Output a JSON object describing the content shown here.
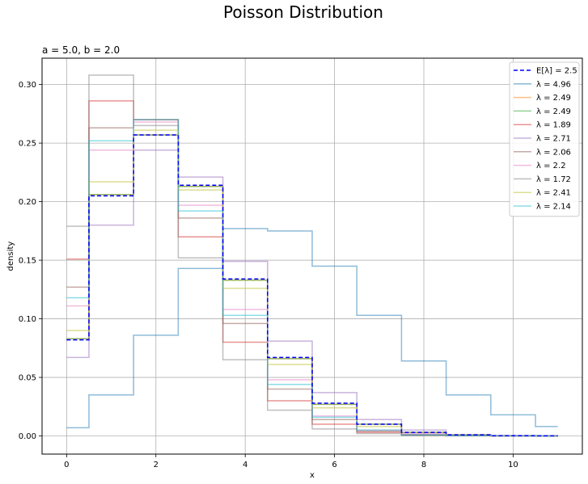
{
  "chart_data": {
    "type": "line",
    "title": "Poisson Distribution",
    "subtitle": "a = 5.0, b = 2.0",
    "xlabel": "x",
    "ylabel": "density",
    "xlim": [
      -0.55,
      11.55
    ],
    "ylim": [
      -0.0155,
      0.3225
    ],
    "xticks": [
      0,
      2,
      4,
      6,
      8,
      10
    ],
    "yticks": [
      0.0,
      0.05,
      0.1,
      0.15,
      0.2,
      0.25,
      0.3
    ],
    "ytick_labels": [
      "0.00",
      "0.05",
      "0.10",
      "0.15",
      "0.20",
      "0.25",
      "0.30"
    ],
    "grid": true,
    "legend_position": "top-right",
    "drawstyle": "steps-mid",
    "x": [
      0,
      1,
      2,
      3,
      4,
      5,
      6,
      7,
      8,
      9,
      10,
      11
    ],
    "series": [
      {
        "name": "E[λ] = 2.5",
        "color": "#0000ff",
        "dashed": true,
        "values": [
          0.082,
          0.205,
          0.257,
          0.214,
          0.134,
          0.067,
          0.028,
          0.01,
          0.003,
          0.001,
          0.0002,
          0.0001
        ]
      },
      {
        "name": "λ = 4.96",
        "color": "#1f77b4",
        "values": [
          0.007,
          0.035,
          0.086,
          0.143,
          0.177,
          0.175,
          0.145,
          0.103,
          0.064,
          0.035,
          0.018,
          0.008
        ]
      },
      {
        "name": "λ = 2.49",
        "color": "#ff7f0e",
        "values": [
          0.083,
          0.206,
          0.257,
          0.213,
          0.133,
          0.066,
          0.027,
          0.01,
          0.003,
          0.001,
          0.0002,
          0.0001
        ]
      },
      {
        "name": "λ = 2.49",
        "color": "#2ca02c",
        "values": [
          0.083,
          0.206,
          0.257,
          0.213,
          0.133,
          0.066,
          0.027,
          0.01,
          0.003,
          0.001,
          0.0002,
          0.0001
        ]
      },
      {
        "name": "λ = 1.89",
        "color": "#d62728",
        "values": [
          0.151,
          0.286,
          0.27,
          0.17,
          0.08,
          0.03,
          0.01,
          0.003,
          0.001,
          0.0002,
          0.0,
          0.0
        ]
      },
      {
        "name": "λ = 2.71",
        "color": "#9467bd",
        "values": [
          0.067,
          0.18,
          0.244,
          0.221,
          0.149,
          0.081,
          0.037,
          0.014,
          0.005,
          0.001,
          0.0004,
          0.0001
        ]
      },
      {
        "name": "λ = 2.06",
        "color": "#8c564b",
        "values": [
          0.127,
          0.263,
          0.27,
          0.186,
          0.096,
          0.04,
          0.014,
          0.004,
          0.001,
          0.0002,
          0.0,
          0.0
        ]
      },
      {
        "name": "λ = 2.2",
        "color": "#e377c2",
        "values": [
          0.111,
          0.244,
          0.268,
          0.197,
          0.108,
          0.048,
          0.017,
          0.005,
          0.002,
          0.0004,
          0.0001,
          0.0
        ]
      },
      {
        "name": "λ = 1.72",
        "color": "#7f7f7f",
        "values": [
          0.179,
          0.308,
          0.265,
          0.152,
          0.065,
          0.022,
          0.006,
          0.002,
          0.0003,
          0.0001,
          0.0,
          0.0
        ]
      },
      {
        "name": "λ = 2.41",
        "color": "#bcbd22",
        "values": [
          0.09,
          0.217,
          0.261,
          0.21,
          0.126,
          0.061,
          0.024,
          0.008,
          0.003,
          0.001,
          0.0002,
          0.0
        ]
      },
      {
        "name": "λ = 2.14",
        "color": "#17becf",
        "values": [
          0.118,
          0.252,
          0.27,
          0.192,
          0.103,
          0.044,
          0.016,
          0.005,
          0.001,
          0.0003,
          0.0001,
          0.0
        ]
      }
    ]
  }
}
